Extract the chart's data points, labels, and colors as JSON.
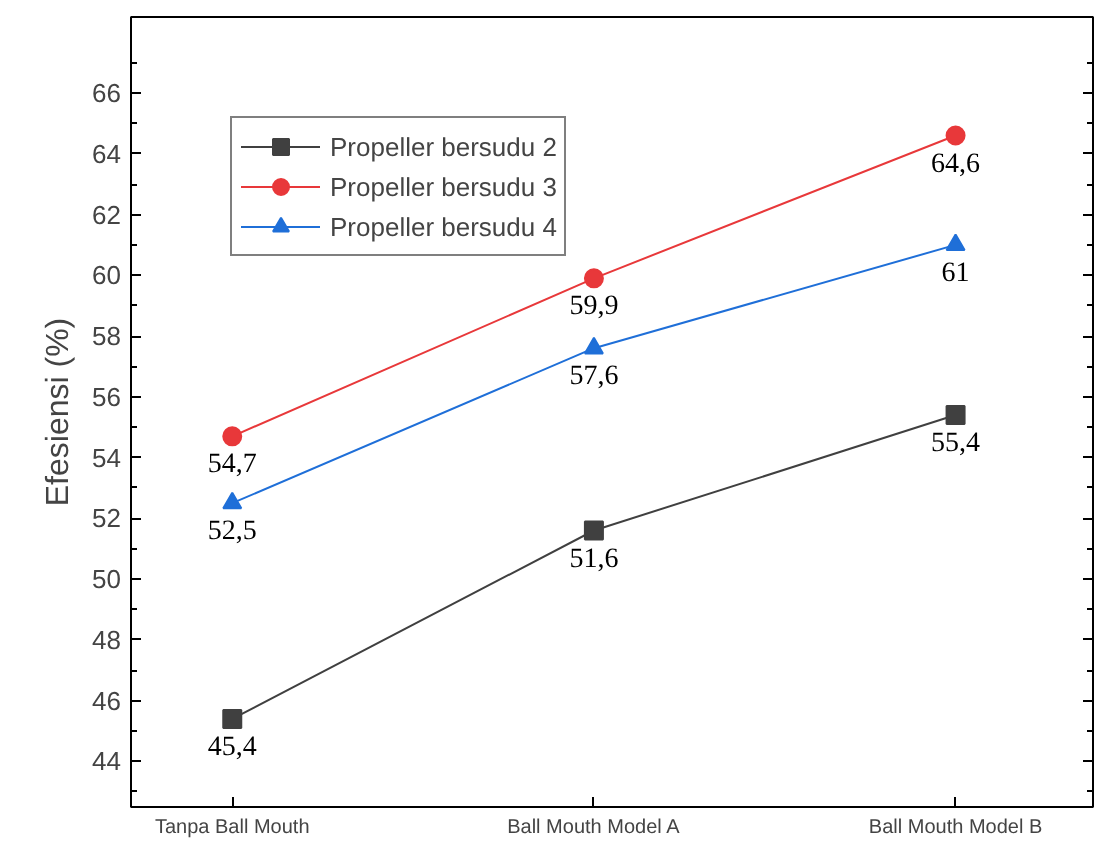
{
  "chart_data": {
    "type": "line",
    "ylabel": "Efesiensi (%)",
    "categories": [
      "Tanpa Ball Mouth",
      "Ball Mouth Model A",
      "Ball Mouth Model B"
    ],
    "series": [
      {
        "name": "Propeller bersudu 2",
        "color": "#404040",
        "marker": "square",
        "values": [
          45.4,
          51.6,
          55.4
        ],
        "value_labels": [
          "45,4",
          "51,6",
          "55,4"
        ]
      },
      {
        "name": "Propeller bersudu 3",
        "color": "#e8383a",
        "marker": "circle",
        "values": [
          54.7,
          59.9,
          64.6
        ],
        "value_labels": [
          "54,7",
          "59,9",
          "64,6"
        ]
      },
      {
        "name": "Propeller bersudu 4",
        "color": "#1f6fd8",
        "marker": "triangle",
        "values": [
          52.5,
          57.6,
          61
        ],
        "value_labels": [
          "52,5",
          "57,6",
          "61"
        ]
      }
    ],
    "ylim": [
      42.5,
      68.5
    ],
    "yticks": [
      44,
      46,
      48,
      50,
      52,
      54,
      56,
      58,
      60,
      62,
      64,
      66
    ],
    "grid": false,
    "legend": "top left"
  }
}
